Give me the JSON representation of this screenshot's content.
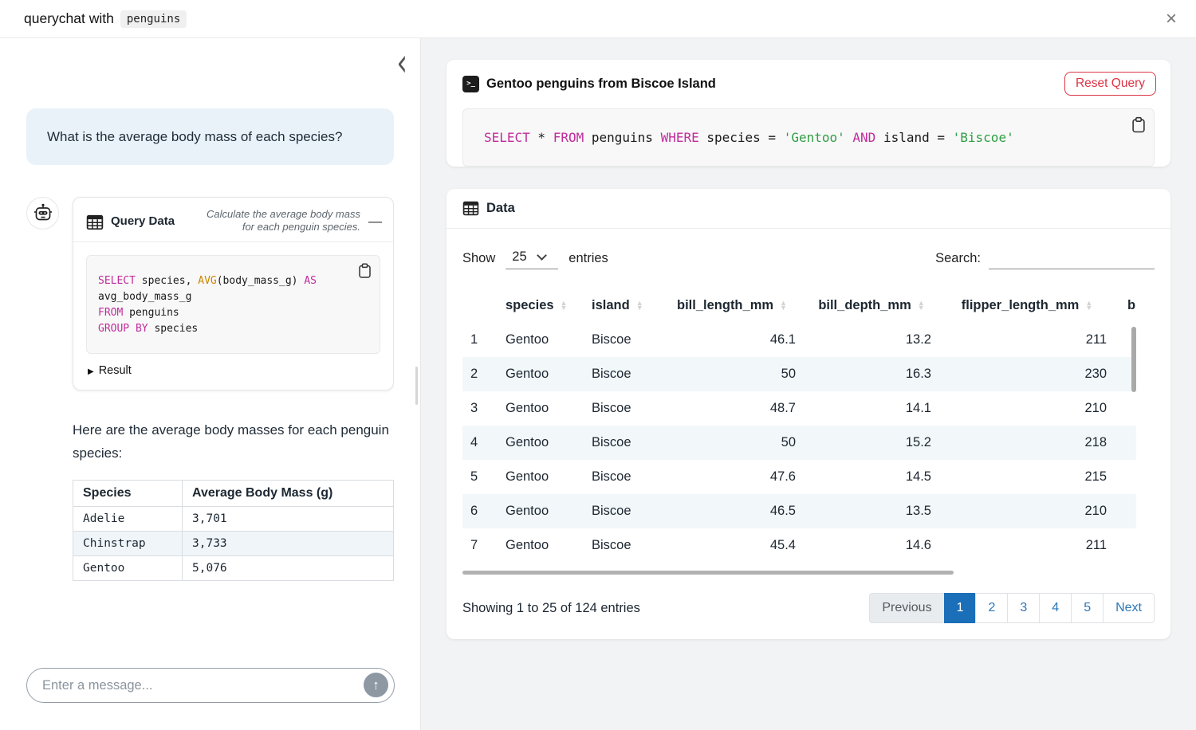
{
  "titlebar": {
    "title": "querychat with",
    "dataset": "penguins",
    "close_glyph": "×"
  },
  "chat": {
    "collapse_glyph": "‹",
    "user_message": "What is the average body mass of each species?",
    "tool_card": {
      "title": "Query Data",
      "subtitle": "Calculate the average body mass for each penguin species.",
      "minimize_glyph": "—",
      "sql_tokens": [
        {
          "t": "SELECT",
          "c": "kw"
        },
        {
          "t": " species, ",
          "c": "pl"
        },
        {
          "t": "AVG",
          "c": "fn"
        },
        {
          "t": "(body_mass_g) ",
          "c": "pl"
        },
        {
          "t": "AS",
          "c": "kw"
        },
        {
          "t": " avg_body_mass_g\n",
          "c": "pl"
        },
        {
          "t": "FROM",
          "c": "kw"
        },
        {
          "t": " penguins\n",
          "c": "pl"
        },
        {
          "t": "GROUP BY",
          "c": "kw"
        },
        {
          "t": " species",
          "c": "pl"
        }
      ],
      "result_arrow": "▶",
      "result_label": "Result"
    },
    "answer_text": "Here are the average body masses for each penguin species:",
    "result_table": {
      "headers": [
        "Species",
        "Average Body Mass (g)"
      ],
      "rows": [
        [
          "Adelie",
          "3,701"
        ],
        [
          "Chinstrap",
          "3,733"
        ],
        [
          "Gentoo",
          "5,076"
        ]
      ]
    },
    "input": {
      "placeholder": "Enter a message...",
      "send_glyph": "↑"
    }
  },
  "query_card": {
    "title": "Gentoo penguins from Biscoe Island",
    "reset_button": "Reset Query",
    "sql_tokens": [
      {
        "t": "SELECT",
        "c": "kw"
      },
      {
        "t": " * ",
        "c": "pl"
      },
      {
        "t": "FROM",
        "c": "kw"
      },
      {
        "t": " penguins ",
        "c": "pl"
      },
      {
        "t": "WHERE",
        "c": "kw"
      },
      {
        "t": " species = ",
        "c": "pl"
      },
      {
        "t": "'Gentoo'",
        "c": "str"
      },
      {
        "t": " ",
        "c": "pl"
      },
      {
        "t": "AND",
        "c": "kw"
      },
      {
        "t": " island = ",
        "c": "pl"
      },
      {
        "t": "'Biscoe'",
        "c": "str"
      }
    ]
  },
  "data_card": {
    "title": "Data",
    "show_label": "Show",
    "page_size": "25",
    "entries_label": "entries",
    "search_label": "Search:",
    "search_value": "",
    "table": {
      "headers": [
        "",
        "species",
        "island",
        "bill_length_mm",
        "bill_depth_mm",
        "flipper_length_mm",
        "b"
      ],
      "rows": [
        [
          "1",
          "Gentoo",
          "Biscoe",
          "46.1",
          "13.2",
          "211",
          ""
        ],
        [
          "2",
          "Gentoo",
          "Biscoe",
          "50",
          "16.3",
          "230",
          ""
        ],
        [
          "3",
          "Gentoo",
          "Biscoe",
          "48.7",
          "14.1",
          "210",
          ""
        ],
        [
          "4",
          "Gentoo",
          "Biscoe",
          "50",
          "15.2",
          "218",
          ""
        ],
        [
          "5",
          "Gentoo",
          "Biscoe",
          "47.6",
          "14.5",
          "215",
          ""
        ],
        [
          "6",
          "Gentoo",
          "Biscoe",
          "46.5",
          "13.5",
          "210",
          ""
        ],
        [
          "7",
          "Gentoo",
          "Biscoe",
          "45.4",
          "14.6",
          "211",
          ""
        ]
      ]
    },
    "footer": {
      "status": "Showing 1 to 25 of 124 entries",
      "pages": [
        {
          "label": "Previous",
          "state": "disabled"
        },
        {
          "label": "1",
          "state": "active"
        },
        {
          "label": "2",
          "state": "link"
        },
        {
          "label": "3",
          "state": "link"
        },
        {
          "label": "4",
          "state": "link"
        },
        {
          "label": "5",
          "state": "link"
        },
        {
          "label": "Next",
          "state": "link"
        }
      ]
    }
  },
  "colors": {
    "active_page_blue": "#1b6eb8",
    "link_blue": "#2b77b8",
    "danger_red": "#dc3545",
    "sql_keyword": "#c02c9c",
    "sql_function": "#cb8500",
    "sql_string": "#2f9e44",
    "user_bubble_bg": "#e9f2f9",
    "row_stripe": "#f2f7fa"
  }
}
